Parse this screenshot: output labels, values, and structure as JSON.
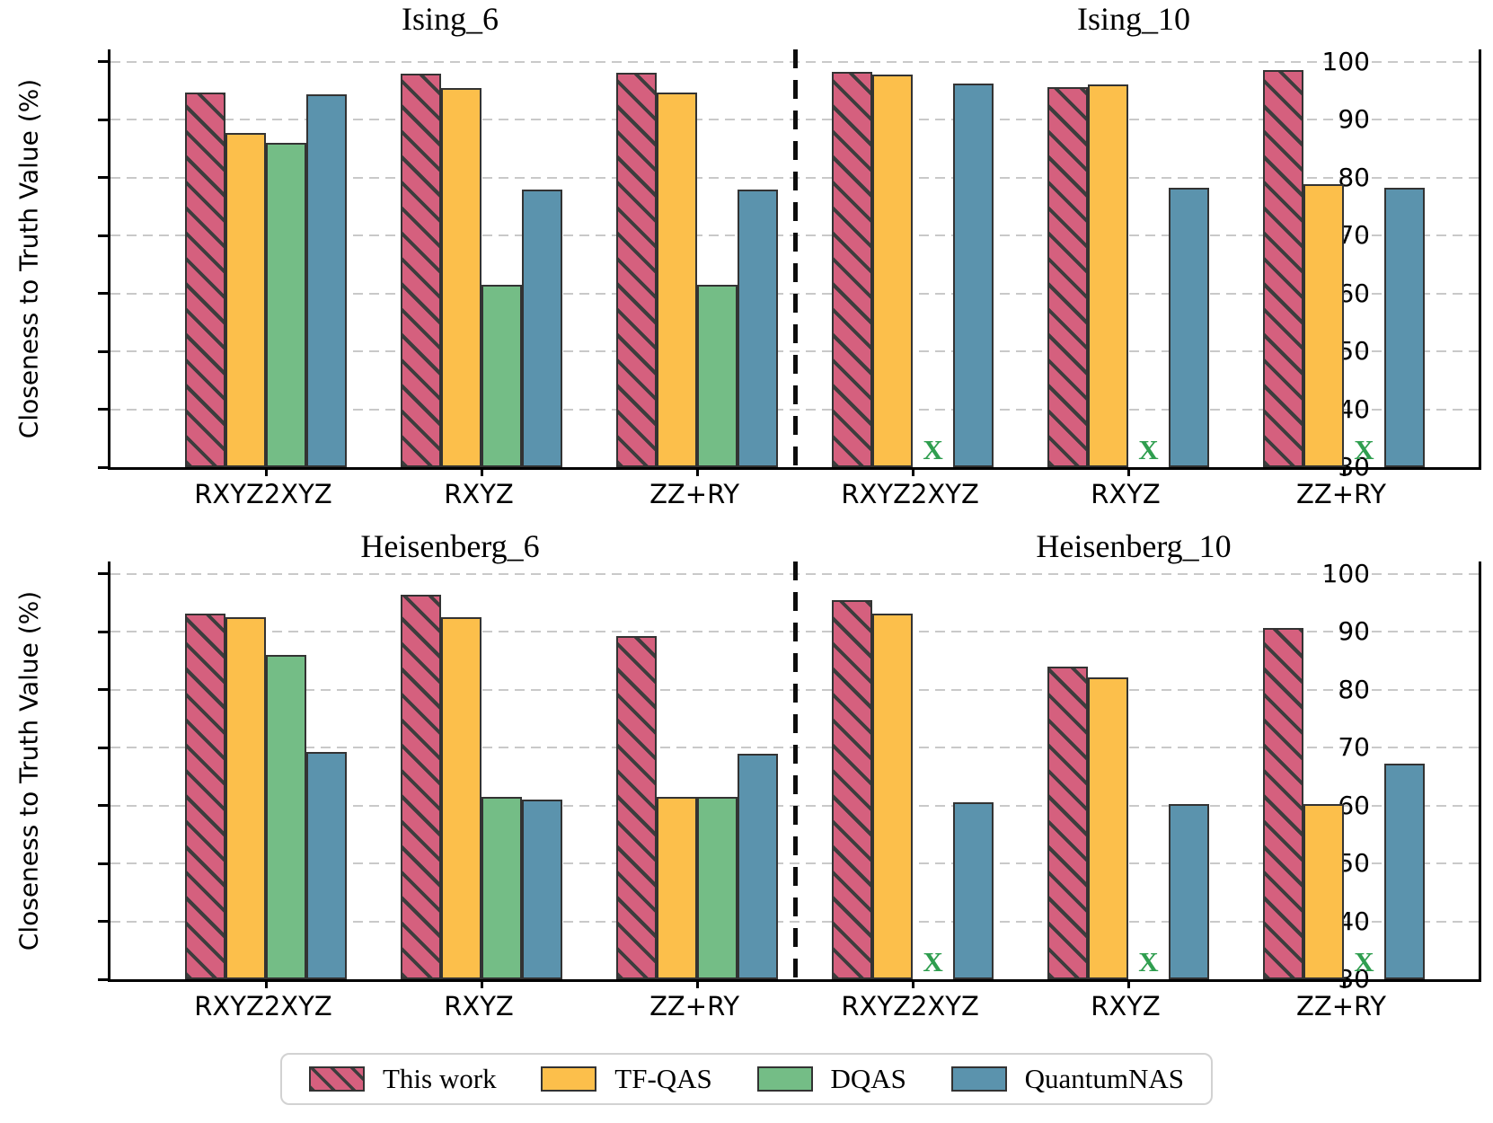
{
  "figure": {
    "ylabel": "Closeness to Truth Value (%)",
    "y_ticks": [
      30,
      40,
      50,
      60,
      70,
      80,
      90,
      100
    ],
    "ylim": [
      30,
      102.15
    ],
    "grid": "dashed-horizontal",
    "missing_marker": "X",
    "missing_marker_color": "#2f9e4f",
    "separator_style": "dashed-vertical-black"
  },
  "legend": {
    "position": "bottom-center",
    "items": [
      {
        "label": "This work",
        "color": "#d5607e",
        "hatch": true
      },
      {
        "label": "TF-QAS",
        "color": "#fcbf4b",
        "hatch": false
      },
      {
        "label": "DQAS",
        "color": "#74bd86",
        "hatch": false
      },
      {
        "label": "QuantumNAS",
        "color": "#5b93ad",
        "hatch": false
      }
    ]
  },
  "chart_data": [
    {
      "type": "bar",
      "title": "Ising_6",
      "categories": [
        "RXYZ2XYZ",
        "RXYZ",
        "ZZ+RY"
      ],
      "series": [
        {
          "name": "This work",
          "values": [
            94.7,
            97.9,
            98.1
          ]
        },
        {
          "name": "TF-QAS",
          "values": [
            87.8,
            95.5,
            94.7
          ]
        },
        {
          "name": "DQAS",
          "values": [
            86.0,
            61.5,
            61.5
          ]
        },
        {
          "name": "QuantumNAS",
          "values": [
            94.4,
            78.0,
            78.0
          ]
        }
      ]
    },
    {
      "type": "bar",
      "title": "Ising_10",
      "categories": [
        "RXYZ2XYZ",
        "RXYZ",
        "ZZ+RY"
      ],
      "series": [
        {
          "name": "This work",
          "values": [
            98.3,
            95.6,
            98.6
          ]
        },
        {
          "name": "TF-QAS",
          "values": [
            97.8,
            96.1,
            78.9
          ]
        },
        {
          "name": "DQAS",
          "values": [
            null,
            null,
            null
          ]
        },
        {
          "name": "QuantumNAS",
          "values": [
            96.2,
            78.3,
            78.3
          ]
        }
      ]
    },
    {
      "type": "bar",
      "title": "Heisenberg_6",
      "categories": [
        "RXYZ2XYZ",
        "RXYZ",
        "ZZ+RY"
      ],
      "series": [
        {
          "name": "This work",
          "values": [
            93.2,
            96.4,
            89.3
          ]
        },
        {
          "name": "TF-QAS",
          "values": [
            92.6,
            92.6,
            61.5
          ]
        },
        {
          "name": "DQAS",
          "values": [
            86.0,
            61.5,
            61.5
          ]
        },
        {
          "name": "QuantumNAS",
          "values": [
            69.2,
            61.0,
            69.0
          ]
        }
      ]
    },
    {
      "type": "bar",
      "title": "Heisenberg_10",
      "categories": [
        "RXYZ2XYZ",
        "RXYZ",
        "ZZ+RY"
      ],
      "series": [
        {
          "name": "This work",
          "values": [
            95.5,
            84.0,
            90.7
          ]
        },
        {
          "name": "TF-QAS",
          "values": [
            93.2,
            82.2,
            60.3
          ]
        },
        {
          "name": "DQAS",
          "values": [
            null,
            null,
            null
          ]
        },
        {
          "name": "QuantumNAS",
          "values": [
            60.6,
            60.2,
            67.2
          ]
        }
      ]
    }
  ]
}
